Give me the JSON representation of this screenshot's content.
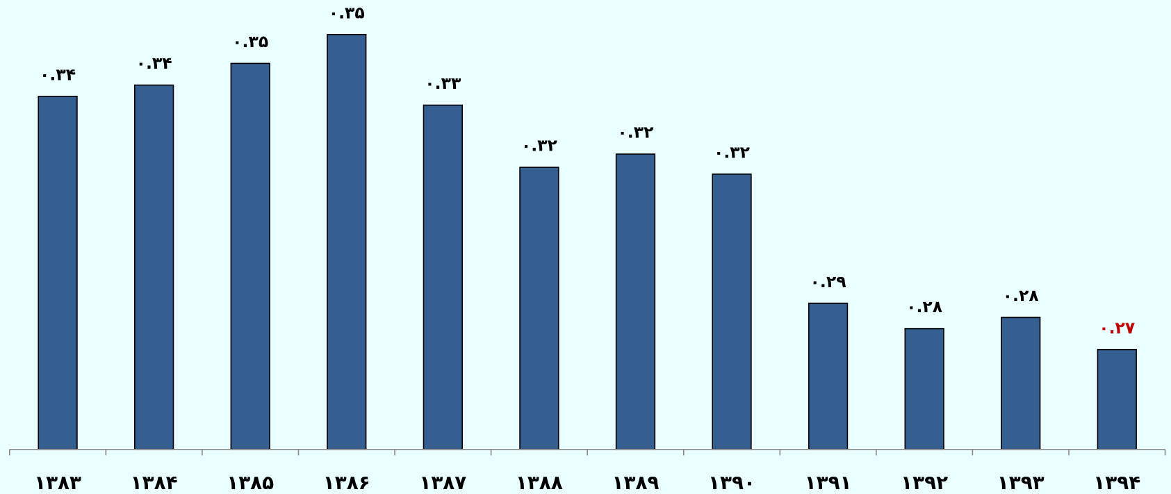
{
  "chart_data": {
    "type": "bar",
    "categories": [
      "۱۳۸۳",
      "۱۳۸۴",
      "۱۳۸۵",
      "۱۳۸۶",
      "۱۳۸۷",
      "۱۳۸۸",
      "۱۳۸۹",
      "۱۳۹۰",
      "۱۳۹۱",
      "۱۳۹۲",
      "۱۳۹۳",
      "۱۳۹۴"
    ],
    "values": [
      0.337,
      0.3398,
      0.3452,
      0.3524,
      0.3348,
      0.3193,
      0.3226,
      0.3176,
      0.2854,
      0.2791,
      0.2819,
      0.2739
    ],
    "value_labels": [
      "۰.۳۴",
      "۰.۳۴",
      "۰.۳۵",
      "۰.۳۵",
      "۰.۳۳",
      "۰.۳۲",
      "۰.۳۲",
      "۰.۳۲",
      "۰.۲۹",
      "۰.۲۸",
      "۰.۲۸",
      "۰.۲۷"
    ],
    "value_label_colors": [
      "#000000",
      "#000000",
      "#000000",
      "#000000",
      "#000000",
      "#000000",
      "#000000",
      "#000000",
      "#000000",
      "#000000",
      "#000000",
      "#c00000"
    ],
    "color": "#365f91",
    "ylim": [
      0.249,
      0.361
    ]
  }
}
